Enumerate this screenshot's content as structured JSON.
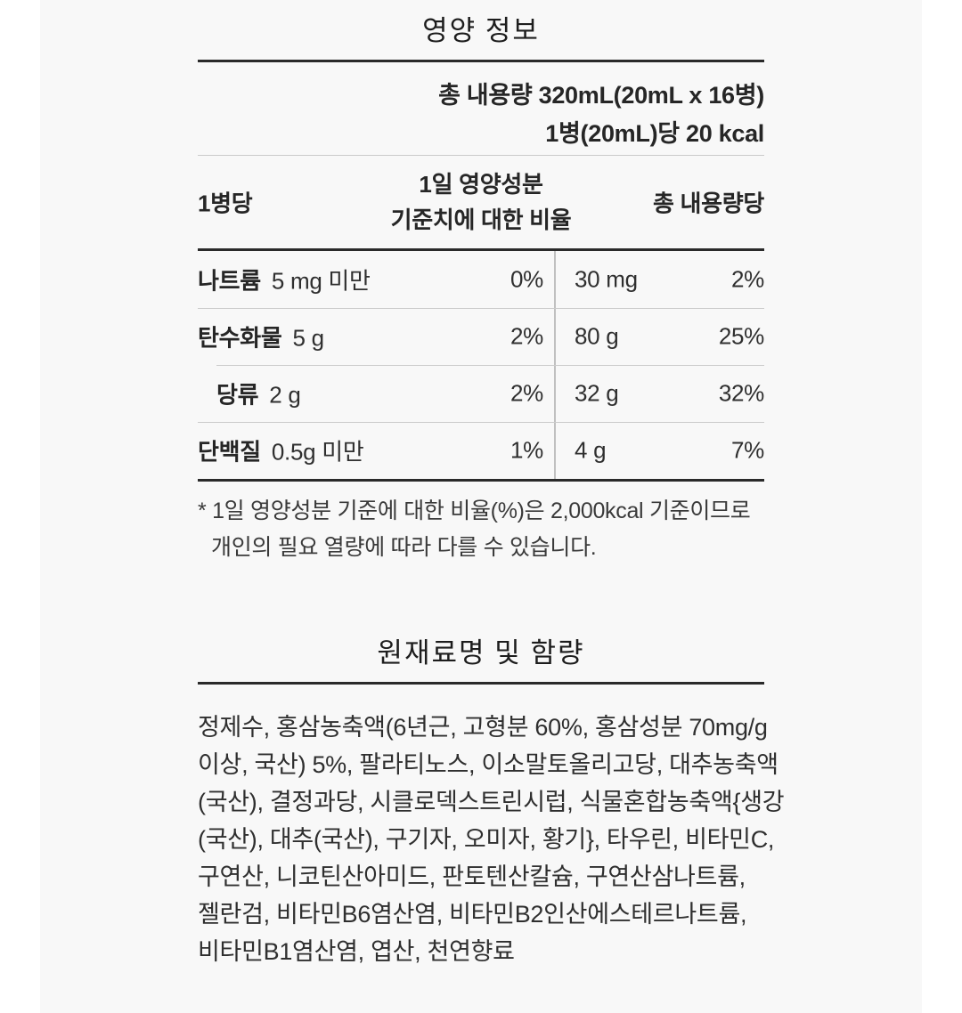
{
  "colors": {
    "panel_bg": "#f8f8f8",
    "page_bg": "#ffffff",
    "rule_dark": "#2a2a2a",
    "rule_light": "#cbcbcb",
    "text": "#2f2f2f"
  },
  "nutrition": {
    "title": "영양 정보",
    "total_volume": "총 내용량 320mL(20mL x 16병)",
    "per_bottle_kcal": "1병(20mL)당 20 kcal",
    "col_headers": {
      "per_bottle": "1병당",
      "daily_value_line1": "1일 영양성분",
      "daily_value_line2": "기준치에 대한 비율",
      "per_total": "총 내용량당"
    },
    "rows": [
      {
        "name": "나트륨",
        "amount": "5 mg 미만",
        "dv": "0%",
        "total_amount": "30 mg",
        "total_dv": "2%"
      },
      {
        "name": "탄수화물",
        "amount": "5 g",
        "dv": "2%",
        "total_amount": "80 g",
        "total_dv": "25%"
      },
      {
        "name": "당류",
        "amount": "2 g",
        "dv": "2%",
        "total_amount": "32 g",
        "total_dv": "32%"
      },
      {
        "name": "단백질",
        "amount": "0.5g 미만",
        "dv": "1%",
        "total_amount": "4 g",
        "total_dv": "7%"
      }
    ],
    "footnote_line1": "* 1일 영양성분 기준에 대한 비율(%)은 2,000kcal 기준이므로",
    "footnote_line2": "개인의 필요 열량에 따라 다를 수 있습니다."
  },
  "ingredients": {
    "title": "원재료명 및 함량",
    "lines": [
      "정제수, 홍삼농축액(6년근, 고형분 60%, 홍삼성분 70mg/g",
      "이상, 국산) 5%, 팔라티노스, 이소말토올리고당, 대추농축액",
      "(국산), 결정과당, 시클로덱스트린시럽, 식물혼합농축액{생강",
      "(국산), 대추(국산), 구기자, 오미자, 황기}, 타우린, 비타민C,",
      "구연산, 니코틴산아미드, 판토텐산칼슘, 구연산삼나트륨,",
      "젤란검, 비타민B6염산염, 비타민B2인산에스테르나트륨,",
      "비타민B1염산염, 엽산, 천연향료"
    ]
  }
}
